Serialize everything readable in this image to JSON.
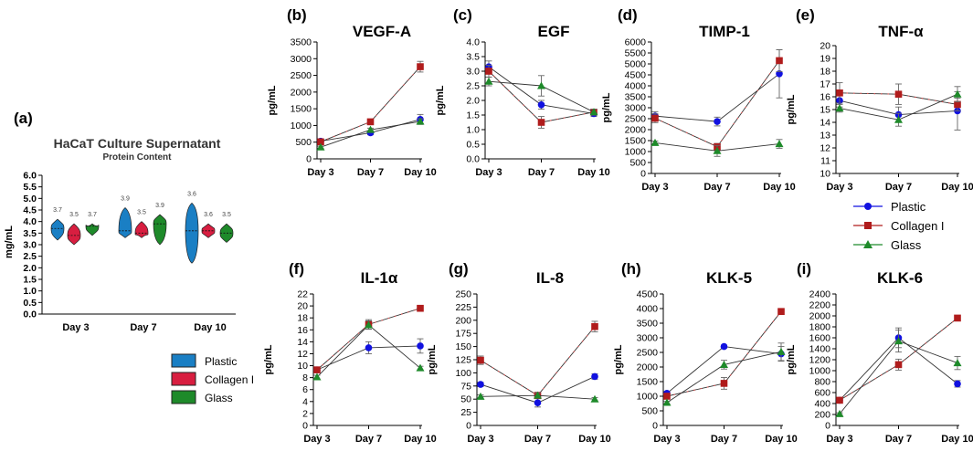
{
  "figure": {
    "legend_right": [
      {
        "name": "Plastic",
        "color": "#1111e0",
        "marker": "circle"
      },
      {
        "name": "Collagen I",
        "color": "#b01c1c",
        "marker": "square"
      },
      {
        "name": "Glass",
        "color": "#1e8a2a",
        "marker": "triangle"
      }
    ],
    "legend_left": [
      {
        "name": "Plastic",
        "color": "#1a7fc4"
      },
      {
        "name": "Collagen I",
        "color": "#d81e40"
      },
      {
        "name": "Glass",
        "color": "#1e8a2a"
      }
    ]
  },
  "chart_data": [
    {
      "id": "a",
      "panel_label": "(a)",
      "type": "violin",
      "title": "HaCaT Culture Supernatant",
      "subtitle": "Protein Content",
      "ylabel": "mg/mL",
      "ylim": [
        0,
        6
      ],
      "yticks": [
        "0.0",
        "0.5",
        "1.0",
        "1.5",
        "2.0",
        "2.5",
        "3.0",
        "3.5",
        "4.0",
        "4.5",
        "5.0",
        "5.5",
        "6.0"
      ],
      "categories": [
        "Day 3",
        "Day 7",
        "Day 10"
      ],
      "series": [
        {
          "name": "Plastic",
          "medians": [
            3.7,
            3.6,
            3.6
          ],
          "mins": [
            3.2,
            3.3,
            2.2
          ],
          "maxs": [
            4.1,
            4.6,
            4.8
          ],
          "labels": [
            "3.7",
            "3.9",
            "3.6"
          ]
        },
        {
          "name": "Collagen I",
          "medians": [
            3.4,
            3.5,
            3.6
          ],
          "mins": [
            3.0,
            3.3,
            3.3
          ],
          "maxs": [
            3.9,
            4.0,
            3.9
          ],
          "labels": [
            "3.5",
            "3.5",
            "3.6"
          ]
        },
        {
          "name": "Glass",
          "medians": [
            3.8,
            3.9,
            3.5
          ],
          "mins": [
            3.4,
            3.0,
            3.1
          ],
          "maxs": [
            3.9,
            4.3,
            3.9
          ],
          "labels": [
            "3.7",
            "3.9",
            "3.5"
          ]
        }
      ]
    },
    {
      "id": "b",
      "panel_label": "(b)",
      "type": "line",
      "title": "VEGF-A",
      "ylabel": "pg/mL",
      "categories": [
        "Day 3",
        "Day 7",
        "Day 10"
      ],
      "ylim": [
        0,
        3500
      ],
      "yticks": [
        "0",
        "500",
        "1000",
        "1500",
        "2000",
        "2500",
        "3000",
        "3500"
      ],
      "series": [
        {
          "name": "Plastic",
          "values": [
            530,
            780,
            1180
          ],
          "errors": [
            40,
            60,
            150
          ]
        },
        {
          "name": "Collagen I",
          "values": [
            510,
            1110,
            2760
          ],
          "errors": [
            30,
            40,
            160
          ]
        },
        {
          "name": "Glass",
          "values": [
            350,
            870,
            1120
          ],
          "errors": [
            30,
            50,
            80
          ]
        }
      ]
    },
    {
      "id": "c",
      "panel_label": "(c)",
      "type": "line",
      "title": "EGF",
      "ylabel": "pg/mL",
      "categories": [
        "Day 3",
        "Day 7",
        "Day 10"
      ],
      "ylim": [
        0,
        4
      ],
      "yticks": [
        "0.0",
        "0.5",
        "1.0",
        "1.5",
        "2.0",
        "2.5",
        "3.0",
        "3.5",
        "4.0"
      ],
      "series": [
        {
          "name": "Plastic",
          "values": [
            3.15,
            1.85,
            1.55
          ],
          "errors": [
            0.2,
            0.15,
            0.1
          ]
        },
        {
          "name": "Collagen I",
          "values": [
            3.0,
            1.25,
            1.6
          ],
          "errors": [
            0.2,
            0.2,
            0.1
          ]
        },
        {
          "name": "Glass",
          "values": [
            2.65,
            2.5,
            1.6
          ],
          "errors": [
            0.15,
            0.35,
            0.1
          ]
        }
      ]
    },
    {
      "id": "d",
      "panel_label": "(d)",
      "type": "line",
      "title": "TIMP-1",
      "ylabel": "pg/mL",
      "categories": [
        "Day 3",
        "Day 7",
        "Day 10"
      ],
      "ylim": [
        0,
        6000
      ],
      "yticks": [
        "0",
        "500",
        "1000",
        "1500",
        "2000",
        "2500",
        "3000",
        "3500",
        "4000",
        "4500",
        "5000",
        "5500",
        "6000"
      ],
      "series": [
        {
          "name": "Plastic",
          "values": [
            2620,
            2370,
            4550
          ],
          "errors": [
            200,
            200,
            1100
          ]
        },
        {
          "name": "Collagen I",
          "values": [
            2520,
            1220,
            5150
          ],
          "errors": [
            200,
            150,
            500
          ]
        },
        {
          "name": "Glass",
          "values": [
            1400,
            1030,
            1350
          ],
          "errors": [
            80,
            250,
            200
          ]
        }
      ]
    },
    {
      "id": "e",
      "panel_label": "(e)",
      "type": "line",
      "title": "TNF-α",
      "ylabel": "pg/mL",
      "categories": [
        "Day 3",
        "Day 7",
        "Day 10"
      ],
      "ylim": [
        10,
        20
      ],
      "yticks": [
        "10",
        "11",
        "12",
        "13",
        "14",
        "15",
        "16",
        "17",
        "18",
        "19",
        "20"
      ],
      "series": [
        {
          "name": "Plastic",
          "values": [
            15.7,
            14.6,
            14.9
          ],
          "errors": [
            0.5,
            0.6,
            1.5
          ]
        },
        {
          "name": "Collagen I",
          "values": [
            16.3,
            16.2,
            15.4
          ],
          "errors": [
            0.8,
            0.8,
            0.5
          ]
        },
        {
          "name": "Glass",
          "values": [
            15.1,
            14.2,
            16.2
          ],
          "errors": [
            0.3,
            0.5,
            0.6
          ]
        }
      ]
    },
    {
      "id": "f",
      "panel_label": "(f)",
      "type": "line",
      "title": "IL-1α",
      "ylabel": "pg/mL",
      "categories": [
        "Day 3",
        "Day 7",
        "Day 10"
      ],
      "ylim": [
        0,
        22
      ],
      "yticks": [
        "0",
        "2",
        "4",
        "6",
        "8",
        "10",
        "12",
        "14",
        "16",
        "18",
        "20",
        "22"
      ],
      "series": [
        {
          "name": "Plastic",
          "values": [
            9.3,
            13.0,
            13.3
          ],
          "errors": [
            0.4,
            1.0,
            1.2
          ]
        },
        {
          "name": "Collagen I",
          "values": [
            9.3,
            16.9,
            19.6
          ],
          "errors": [
            0.4,
            0.8,
            0.3
          ]
        },
        {
          "name": "Glass",
          "values": [
            8.1,
            16.8,
            9.6
          ],
          "errors": [
            0.3,
            0.7,
            0.3
          ]
        }
      ]
    },
    {
      "id": "g",
      "panel_label": "(g)",
      "type": "line",
      "title": "IL-8",
      "ylabel": "pg/mL",
      "categories": [
        "Day 3",
        "Day 7",
        "Day 10"
      ],
      "ylim": [
        0,
        250
      ],
      "yticks": [
        "0",
        "25",
        "50",
        "75",
        "100",
        "125",
        "150",
        "175",
        "200",
        "225",
        "250"
      ],
      "series": [
        {
          "name": "Plastic",
          "values": [
            78,
            43,
            93
          ],
          "errors": [
            4,
            8,
            5
          ]
        },
        {
          "name": "Collagen I",
          "values": [
            124,
            57,
            188
          ],
          "errors": [
            8,
            6,
            10
          ]
        },
        {
          "name": "Glass",
          "values": [
            55,
            57,
            50
          ],
          "errors": [
            3,
            5,
            3
          ]
        }
      ]
    },
    {
      "id": "h",
      "panel_label": "(h)",
      "type": "line",
      "title": "KLK-5",
      "ylabel": "pg/mL",
      "categories": [
        "Day 3",
        "Day 7",
        "Day 10"
      ],
      "ylim": [
        0,
        4500
      ],
      "yticks": [
        "0",
        "500",
        "1000",
        "1500",
        "2000",
        "2500",
        "3000",
        "3500",
        "4000",
        "4500"
      ],
      "series": [
        {
          "name": "Plastic",
          "values": [
            1100,
            2700,
            2450
          ],
          "errors": [
            60,
            50,
            250
          ]
        },
        {
          "name": "Collagen I",
          "values": [
            1000,
            1440,
            3900
          ],
          "errors": [
            60,
            200,
            70
          ]
        },
        {
          "name": "Glass",
          "values": [
            780,
            2080,
            2520
          ],
          "errors": [
            40,
            150,
            300
          ]
        }
      ]
    },
    {
      "id": "i",
      "panel_label": "(i)",
      "type": "line",
      "title": "KLK-6",
      "ylabel": "pg/mL",
      "categories": [
        "Day 3",
        "Day 7",
        "Day 10"
      ],
      "ylim": [
        0,
        2400
      ],
      "yticks": [
        "0",
        "200",
        "400",
        "600",
        "800",
        "1000",
        "1200",
        "1400",
        "1600",
        "1800",
        "2000",
        "2200",
        "2400"
      ],
      "series": [
        {
          "name": "Plastic",
          "values": [
            460,
            1600,
            760
          ],
          "errors": [
            30,
            180,
            60
          ]
        },
        {
          "name": "Collagen I",
          "values": [
            460,
            1110,
            1960
          ],
          "errors": [
            30,
            100,
            40
          ]
        },
        {
          "name": "Glass",
          "values": [
            210,
            1540,
            1140
          ],
          "errors": [
            20,
            200,
            120
          ]
        }
      ]
    }
  ]
}
